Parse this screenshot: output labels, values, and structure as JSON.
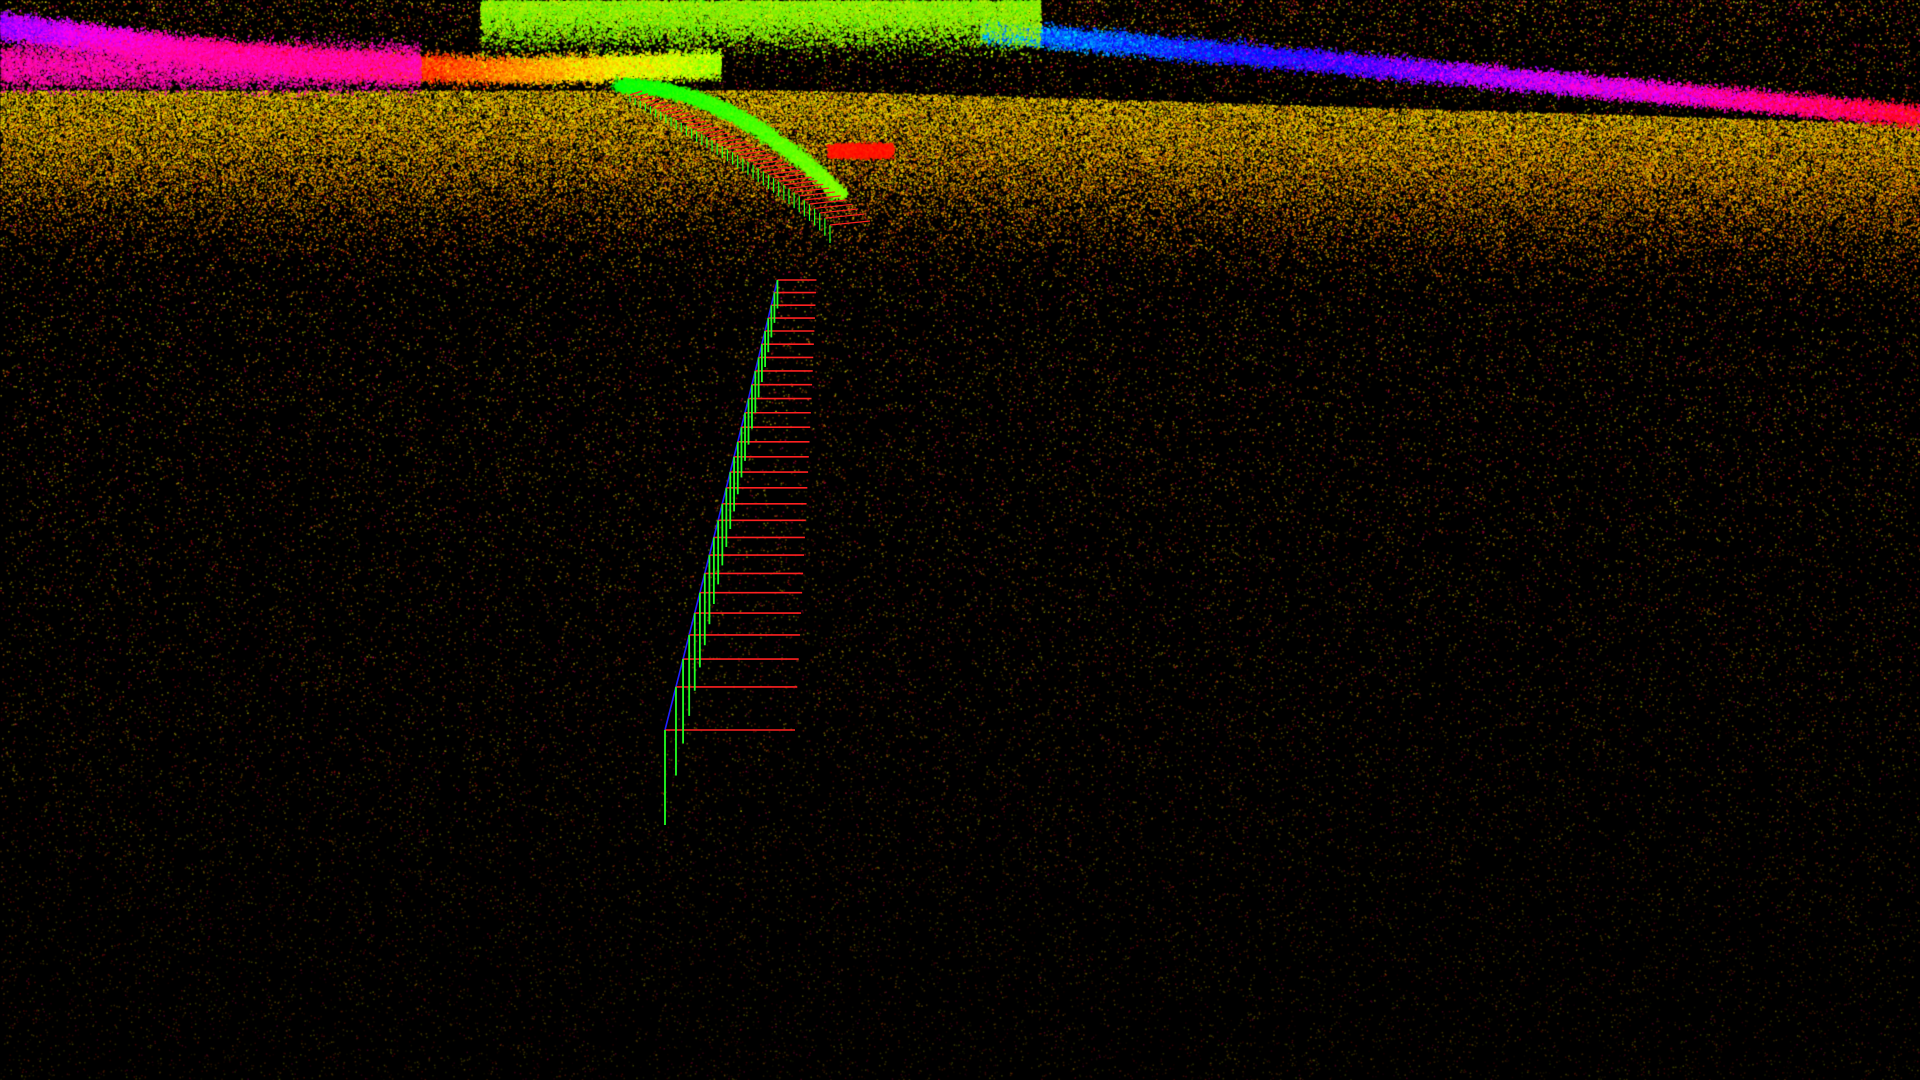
{
  "scene": {
    "kind": "lidar-point-cloud-viewer",
    "background_color": "#000000",
    "point_palette": [
      "#ff2bd6",
      "#ff3a3a",
      "#ff9a1a",
      "#ffd21f",
      "#b8ff2a",
      "#3dff4a",
      "#1fe8c8",
      "#2aa8ff",
      "#3a3aff",
      "#c43aff"
    ],
    "trajectory": {
      "pose_count": 27,
      "axis_colors": {
        "x": "#ff2020",
        "y": "#20ff20",
        "z": "#2020ff"
      }
    }
  }
}
